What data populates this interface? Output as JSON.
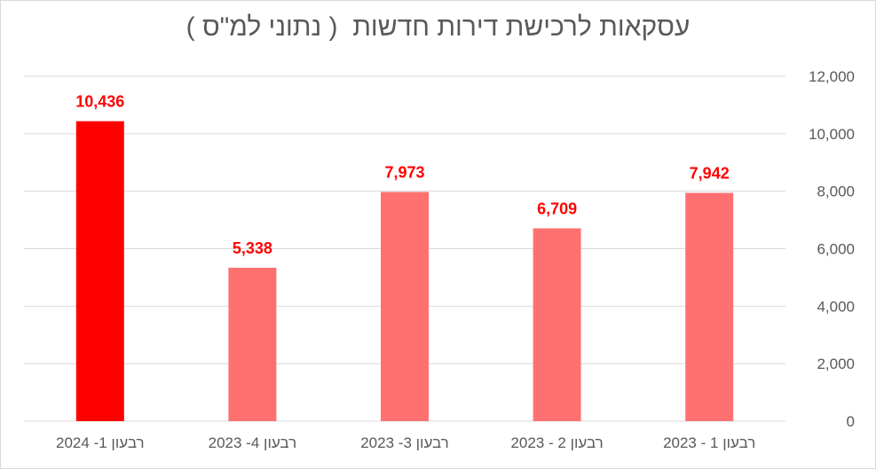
{
  "chart_data": {
    "type": "bar",
    "title": "עסקאות לרכישת דירות חדשות  ( נתוני למ\"ס )",
    "categories": [
      "רבעון 1- 2024",
      "רבעון 4- 2023",
      "רבעון 3- 2023",
      "רבעון 2 - 2023",
      "רבעון 1 - 2023"
    ],
    "values": [
      10436,
      5338,
      7973,
      6709,
      7942
    ],
    "data_labels": [
      "10,436",
      "5,338",
      "7,973",
      "6,709",
      "7,942"
    ],
    "bar_colors": [
      "#ff0000",
      "#ff7171",
      "#ff7171",
      "#ff7171",
      "#ff7171"
    ],
    "data_label_color": "#ff0000",
    "ylim": [
      0,
      12000
    ],
    "yticks": [
      0,
      2000,
      4000,
      6000,
      8000,
      10000,
      12000
    ],
    "ytick_labels": [
      "0",
      "2,000",
      "4,000",
      "6,000",
      "8,000",
      "10,000",
      "12,000"
    ],
    "y_axis_side": "right",
    "grid": true,
    "gridline_color": "#d9d9d9",
    "xlabel": "",
    "ylabel": ""
  }
}
